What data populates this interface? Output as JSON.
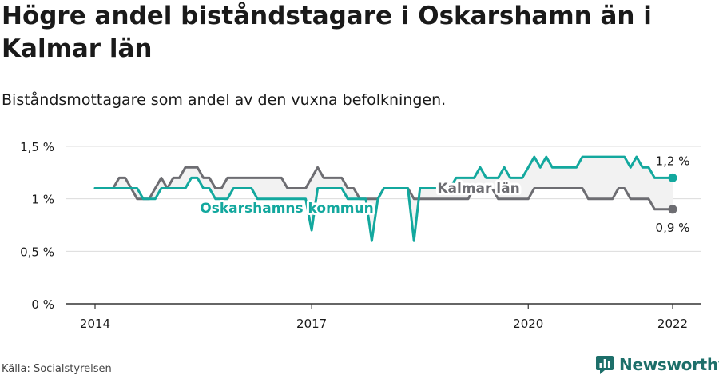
{
  "header": {
    "title": "Högre andel biståndstagare i Oskarshamn än i Kalmar län",
    "subtitle": "Biståndsmottagare som andel av den vuxna befolkningen."
  },
  "footer": {
    "source": "Källa: Socialstyrelsen",
    "brand": "Newsworthy",
    "brand_icon": "newsworthy-logo-icon"
  },
  "colors": {
    "oskarshamn": "#13a89e",
    "kalmar": "#6d6d72",
    "band": "#f2f2f2",
    "grid": "#dcdcdc",
    "axis": "#333333",
    "text": "#1a1a1a"
  },
  "chart_data": {
    "type": "line",
    "y_ticks": [
      {
        "value": 0,
        "label": "0 %"
      },
      {
        "value": 0.5,
        "label": "0,5 %"
      },
      {
        "value": 1,
        "label": "1 %"
      },
      {
        "value": 1.5,
        "label": "1,5 %"
      }
    ],
    "ylim": [
      0,
      1.5
    ],
    "x_ticks": [
      {
        "value": 2014,
        "label": "2014"
      },
      {
        "value": 2017,
        "label": "2017"
      },
      {
        "value": 2020,
        "label": "2020"
      },
      {
        "value": 2022,
        "label": "2022"
      }
    ],
    "xlim": [
      2013.6,
      2022.4
    ],
    "grid": "horizontal",
    "series": [
      {
        "name": "Oskarshamns kommun",
        "color": "#13a89e",
        "end_label": "1,2 %",
        "x": [
          2014.0,
          2014.083,
          2014.167,
          2014.25,
          2014.333,
          2014.417,
          2014.5,
          2014.583,
          2014.667,
          2014.75,
          2014.833,
          2014.917,
          2015.0,
          2015.083,
          2015.167,
          2015.25,
          2015.333,
          2015.417,
          2015.5,
          2015.583,
          2015.667,
          2015.75,
          2015.833,
          2015.917,
          2016.0,
          2016.083,
          2016.167,
          2016.25,
          2016.333,
          2016.417,
          2016.5,
          2016.583,
          2016.667,
          2016.75,
          2016.833,
          2016.917,
          2017.0,
          2017.083,
          2017.167,
          2017.25,
          2017.333,
          2017.417,
          2017.5,
          2017.583,
          2017.667,
          2017.75,
          2017.833,
          2017.917,
          2018.0,
          2018.083,
          2018.167,
          2018.25,
          2018.333,
          2018.417,
          2018.5,
          2018.583,
          2018.667,
          2018.75,
          2018.833,
          2018.917,
          2019.0,
          2019.083,
          2019.167,
          2019.25,
          2019.333,
          2019.417,
          2019.5,
          2019.583,
          2019.667,
          2019.75,
          2019.833,
          2019.917,
          2020.0,
          2020.083,
          2020.167,
          2020.25,
          2020.333,
          2020.417,
          2020.5,
          2020.583,
          2020.667,
          2020.75,
          2020.833,
          2020.917,
          2021.0,
          2021.083,
          2021.167,
          2021.25,
          2021.333,
          2021.417,
          2021.5,
          2021.583,
          2021.667,
          2021.75,
          2021.833,
          2021.917,
          2022.0
        ],
        "values": [
          1.1,
          1.1,
          1.1,
          1.1,
          1.1,
          1.1,
          1.1,
          1.1,
          1.0,
          1.0,
          1.0,
          1.1,
          1.1,
          1.1,
          1.1,
          1.1,
          1.2,
          1.2,
          1.1,
          1.1,
          1.0,
          1.0,
          1.0,
          1.1,
          1.1,
          1.1,
          1.1,
          1.0,
          1.0,
          1.0,
          1.0,
          1.0,
          1.0,
          1.0,
          1.0,
          1.0,
          0.7,
          1.1,
          1.1,
          1.1,
          1.1,
          1.1,
          1.0,
          1.0,
          1.0,
          1.0,
          0.6,
          1.0,
          1.1,
          1.1,
          1.1,
          1.1,
          1.1,
          0.6,
          1.1,
          1.1,
          1.1,
          1.1,
          1.1,
          1.1,
          1.2,
          1.2,
          1.2,
          1.2,
          1.3,
          1.2,
          1.2,
          1.2,
          1.3,
          1.2,
          1.2,
          1.2,
          1.3,
          1.4,
          1.3,
          1.4,
          1.3,
          1.3,
          1.3,
          1.3,
          1.3,
          1.4,
          1.4,
          1.4,
          1.4,
          1.4,
          1.4,
          1.4,
          1.4,
          1.3,
          1.4,
          1.3,
          1.3,
          1.2,
          1.2,
          1.2,
          1.2
        ]
      },
      {
        "name": "Kalmar län",
        "color": "#6d6d72",
        "end_label": "0,9 %",
        "x": [
          2014.0,
          2014.083,
          2014.167,
          2014.25,
          2014.333,
          2014.417,
          2014.5,
          2014.583,
          2014.667,
          2014.75,
          2014.833,
          2014.917,
          2015.0,
          2015.083,
          2015.167,
          2015.25,
          2015.333,
          2015.417,
          2015.5,
          2015.583,
          2015.667,
          2015.75,
          2015.833,
          2015.917,
          2016.0,
          2016.083,
          2016.167,
          2016.25,
          2016.333,
          2016.417,
          2016.5,
          2016.583,
          2016.667,
          2016.75,
          2016.833,
          2016.917,
          2017.0,
          2017.083,
          2017.167,
          2017.25,
          2017.333,
          2017.417,
          2017.5,
          2017.583,
          2017.667,
          2017.75,
          2017.833,
          2017.917,
          2018.0,
          2018.083,
          2018.167,
          2018.25,
          2018.333,
          2018.417,
          2018.5,
          2018.583,
          2018.667,
          2018.75,
          2018.833,
          2018.917,
          2019.0,
          2019.083,
          2019.167,
          2019.25,
          2019.333,
          2019.417,
          2019.5,
          2019.583,
          2019.667,
          2019.75,
          2019.833,
          2019.917,
          2020.0,
          2020.083,
          2020.167,
          2020.25,
          2020.333,
          2020.417,
          2020.5,
          2020.583,
          2020.667,
          2020.75,
          2020.833,
          2020.917,
          2021.0,
          2021.083,
          2021.167,
          2021.25,
          2021.333,
          2021.417,
          2021.5,
          2021.583,
          2021.667,
          2021.75,
          2021.833,
          2021.917,
          2022.0
        ],
        "values": [
          1.1,
          1.1,
          1.1,
          1.1,
          1.2,
          1.2,
          1.1,
          1.0,
          1.0,
          1.0,
          1.1,
          1.2,
          1.1,
          1.2,
          1.2,
          1.3,
          1.3,
          1.3,
          1.2,
          1.2,
          1.1,
          1.1,
          1.2,
          1.2,
          1.2,
          1.2,
          1.2,
          1.2,
          1.2,
          1.2,
          1.2,
          1.2,
          1.1,
          1.1,
          1.1,
          1.1,
          1.2,
          1.3,
          1.2,
          1.2,
          1.2,
          1.2,
          1.1,
          1.1,
          1.0,
          1.0,
          1.0,
          1.0,
          1.1,
          1.1,
          1.1,
          1.1,
          1.1,
          1.0,
          1.0,
          1.0,
          1.0,
          1.0,
          1.0,
          1.0,
          1.0,
          1.0,
          1.0,
          1.1,
          1.1,
          1.1,
          1.1,
          1.0,
          1.0,
          1.0,
          1.0,
          1.0,
          1.0,
          1.1,
          1.1,
          1.1,
          1.1,
          1.1,
          1.1,
          1.1,
          1.1,
          1.1,
          1.0,
          1.0,
          1.0,
          1.0,
          1.0,
          1.1,
          1.1,
          1.0,
          1.0,
          1.0,
          1.0,
          0.9,
          0.9,
          0.9,
          0.9
        ]
      }
    ]
  }
}
